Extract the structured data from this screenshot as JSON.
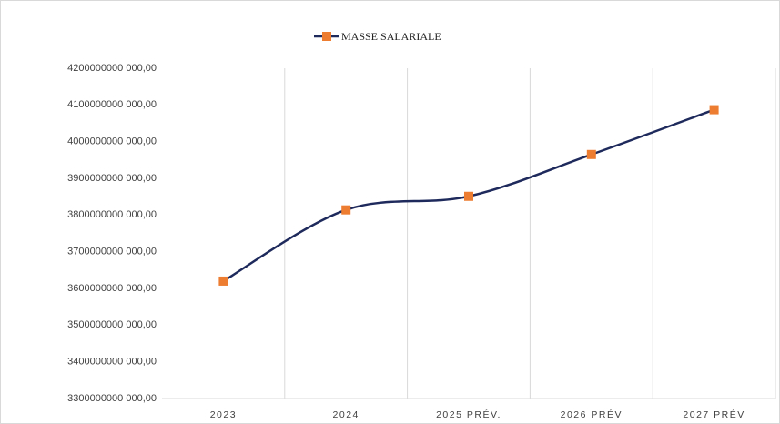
{
  "chart_data": {
    "type": "line",
    "categories": [
      "2023",
      "2024",
      "2025 PRÉV.",
      "2026 PRÉV",
      "2027 PRÉV"
    ],
    "series": [
      {
        "name": "MASSE SALARIALE",
        "color": "#1f2a5c",
        "marker_color": "#ed7d31",
        "values": [
          3620000000000,
          3814000000000,
          3851000000000,
          3965000000000,
          4087000000000
        ]
      }
    ],
    "ylim": [
      3300000000000,
      4200000000000
    ],
    "yticks": [
      {
        "value": 3300000000000,
        "label": "3300000000 000,00"
      },
      {
        "value": 3400000000000,
        "label": "3400000000 000,00"
      },
      {
        "value": 3500000000000,
        "label": "3500000000 000,00"
      },
      {
        "value": 3600000000000,
        "label": "3600000000 000,00"
      },
      {
        "value": 3700000000000,
        "label": "3700000000 000,00"
      },
      {
        "value": 3800000000000,
        "label": "3800000000 000,00"
      },
      {
        "value": 3900000000000,
        "label": "3900000000 000,00"
      },
      {
        "value": 4000000000000,
        "label": "4000000000 000,00"
      },
      {
        "value": 4100000000000,
        "label": "4100000000 000,00"
      },
      {
        "value": 4200000000000,
        "label": "4200000000 000,00"
      }
    ],
    "smooth": true,
    "legend": "top",
    "grid": "x"
  }
}
